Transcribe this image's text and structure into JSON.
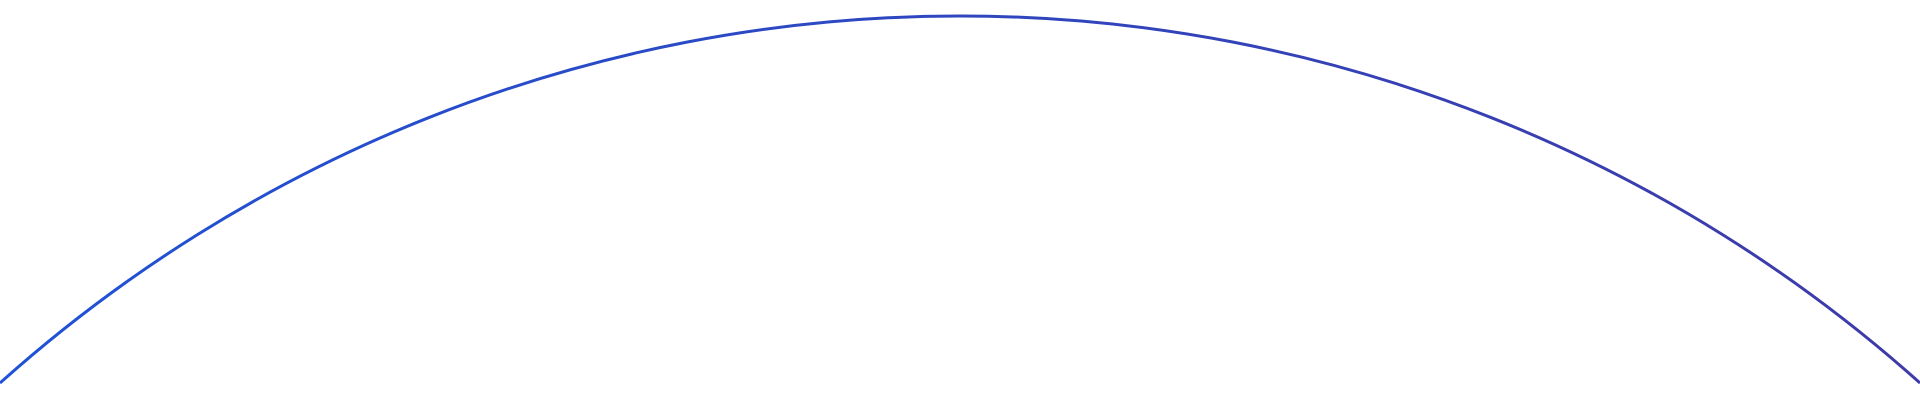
{
  "arc": {
    "color_start": "#1f52d6",
    "color_end": "#3e3aa8"
  }
}
